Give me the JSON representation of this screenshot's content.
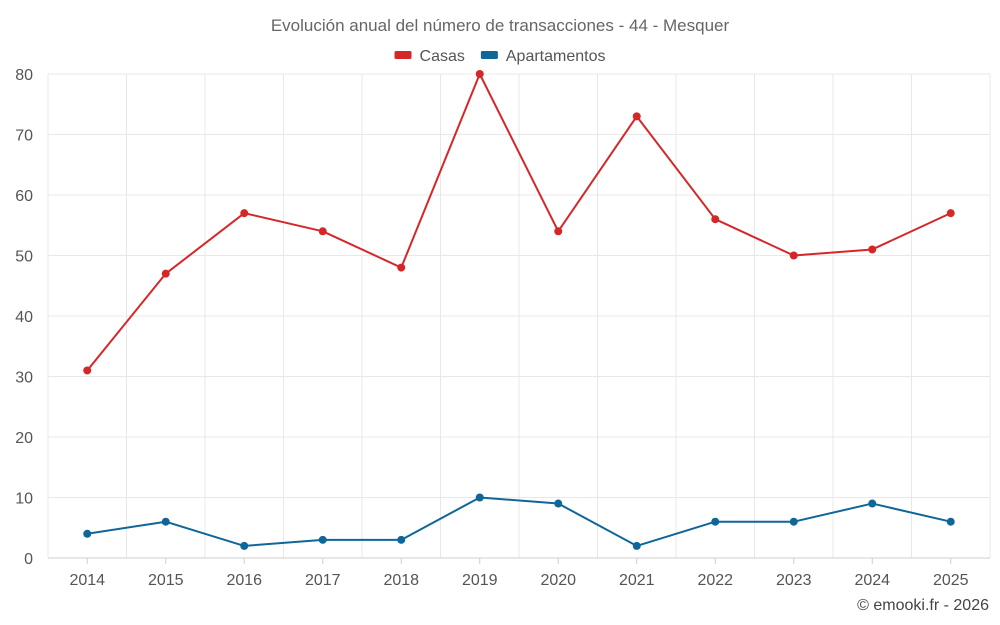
{
  "chart_data": {
    "type": "line",
    "title": "Evolución anual del número de transacciones - 44 - Mesquer",
    "xlabel": "",
    "ylabel": "",
    "categories": [
      "2014",
      "2015",
      "2016",
      "2017",
      "2018",
      "2019",
      "2020",
      "2021",
      "2022",
      "2023",
      "2024",
      "2025"
    ],
    "ylim": [
      0,
      80
    ],
    "yticks": [
      0,
      10,
      20,
      30,
      40,
      50,
      60,
      70,
      80
    ],
    "grid": true,
    "legend_position": "top-center",
    "series": [
      {
        "name": "Casas",
        "color": "#d62728",
        "values": [
          31,
          47,
          57,
          54,
          48,
          80,
          54,
          73,
          56,
          50,
          51,
          57
        ]
      },
      {
        "name": "Apartamentos",
        "color": "#0f6699",
        "values": [
          4,
          6,
          2,
          3,
          3,
          10,
          9,
          2,
          6,
          6,
          9,
          6
        ]
      }
    ]
  },
  "credit": "© emooki.fr - 2026"
}
